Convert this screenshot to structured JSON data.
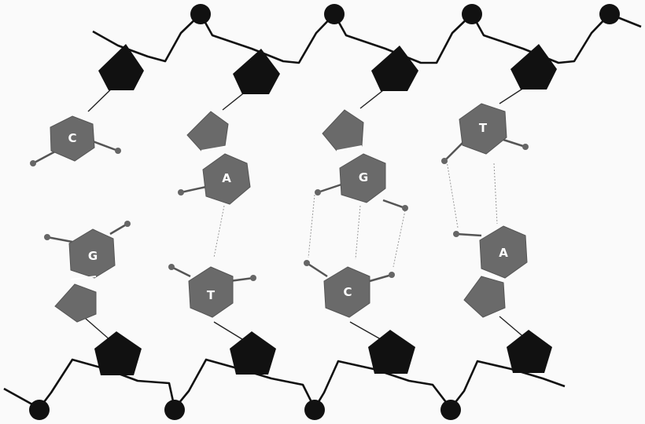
{
  "diagram": {
    "colors": {
      "background": "#fafafa",
      "backbone": "#111111",
      "phosphate": "#111111",
      "sugar": "#111111",
      "base": "#6a6a6a",
      "base_stroke": "#555555",
      "label": "#ffffff",
      "hydrogen_bond": "#9a9a9a"
    },
    "top_strand": {
      "bases": [
        {
          "label": "C"
        },
        {
          "label": "A"
        },
        {
          "label": "G"
        },
        {
          "label": "T"
        }
      ]
    },
    "bottom_strand": {
      "bases": [
        {
          "label": "G"
        },
        {
          "label": "T"
        },
        {
          "label": "C"
        },
        {
          "label": "A"
        }
      ]
    }
  }
}
